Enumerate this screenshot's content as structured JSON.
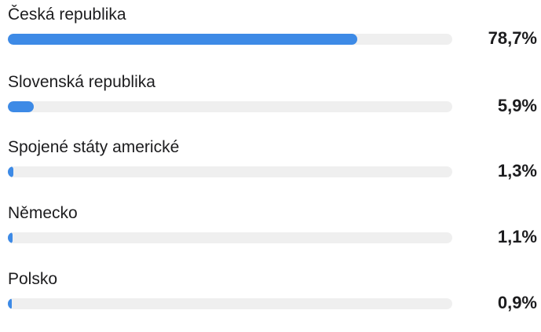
{
  "stats": {
    "rows": [
      {
        "label": "Česká republika",
        "value": "78,7%",
        "fraction": 0.787
      },
      {
        "label": "Slovenská republika",
        "value": "5,9%",
        "fraction": 0.059
      },
      {
        "label": "Spojené státy americké",
        "value": "1,3%",
        "fraction": 0.013
      },
      {
        "label": "Německo",
        "value": "1,1%",
        "fraction": 0.011
      },
      {
        "label": "Polsko",
        "value": "0,9%",
        "fraction": 0.009
      }
    ]
  },
  "colors": {
    "bar_fill": "#3d8ae6",
    "bar_track": "#efefef",
    "text": "#1c1c1e"
  }
}
